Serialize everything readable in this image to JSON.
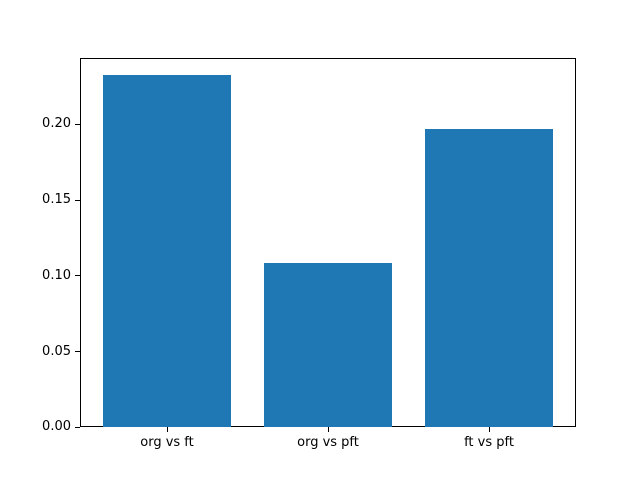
{
  "chart_data": {
    "type": "bar",
    "categories": [
      "org vs ft",
      "org vs pft",
      "ft vs pft"
    ],
    "values": [
      0.2325,
      0.1082,
      0.1968
    ],
    "title": "",
    "xlabel": "",
    "ylabel": "",
    "xlim": [
      -0.54,
      2.54
    ],
    "ylim": [
      0,
      0.2441
    ],
    "yticks": [
      0,
      0.05,
      0.1,
      0.15,
      0.2
    ],
    "ytick_labels": [
      "0.00",
      "0.05",
      "0.10",
      "0.15",
      "0.20"
    ],
    "bar_width": 0.8,
    "bar_color": "#1f77b4",
    "axes_color": "#000000",
    "text_color": "#000000",
    "background_color": "#ffffff",
    "grid": false,
    "legend": "none"
  }
}
